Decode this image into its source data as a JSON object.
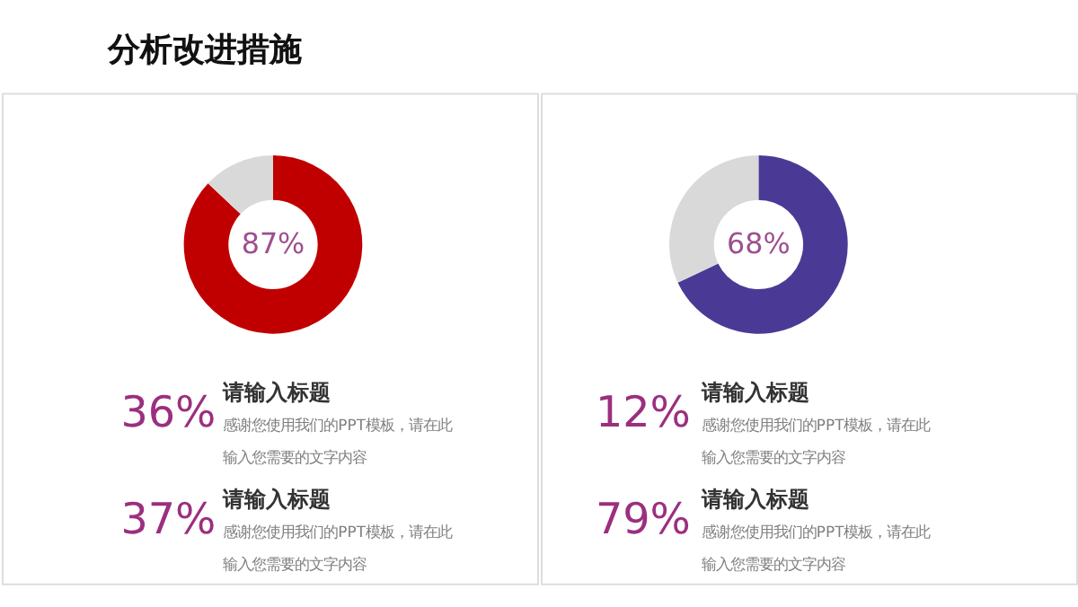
{
  "chart_data": [
    {
      "type": "donut",
      "title": "分析改进措施",
      "categories": [
        null,
        null
      ],
      "values": [
        87,
        13
      ],
      "colors": [
        "#c00000",
        "#d9d9d9"
      ],
      "value_labels": [
        "87%",
        null
      ],
      "legend": false,
      "annotations": [
        "36%",
        "请输入标题",
        "感谢您使用我们的PPT模板，请在此",
        "输入您需要的文字内容",
        "37%",
        "请输入标题",
        "感谢您使用我们的PPT模板，请在此",
        "输入您需要的文字内容"
      ]
    },
    {
      "type": "donut",
      "categories": [
        null,
        null
      ],
      "values": [
        68,
        32
      ],
      "colors": [
        "#4b3a95",
        "#d9d9d9"
      ],
      "value_labels": [
        "68%",
        null
      ],
      "legend": false,
      "annotations": [
        "12%",
        "请输入标题",
        "感谢您使用我们的PPT模板，请在此",
        "输入您需要的文字内容",
        "79%",
        "请输入标题",
        "感谢您使用我们的PPT模板，请在此",
        "输入您需要的文字内容"
      ]
    }
  ]
}
